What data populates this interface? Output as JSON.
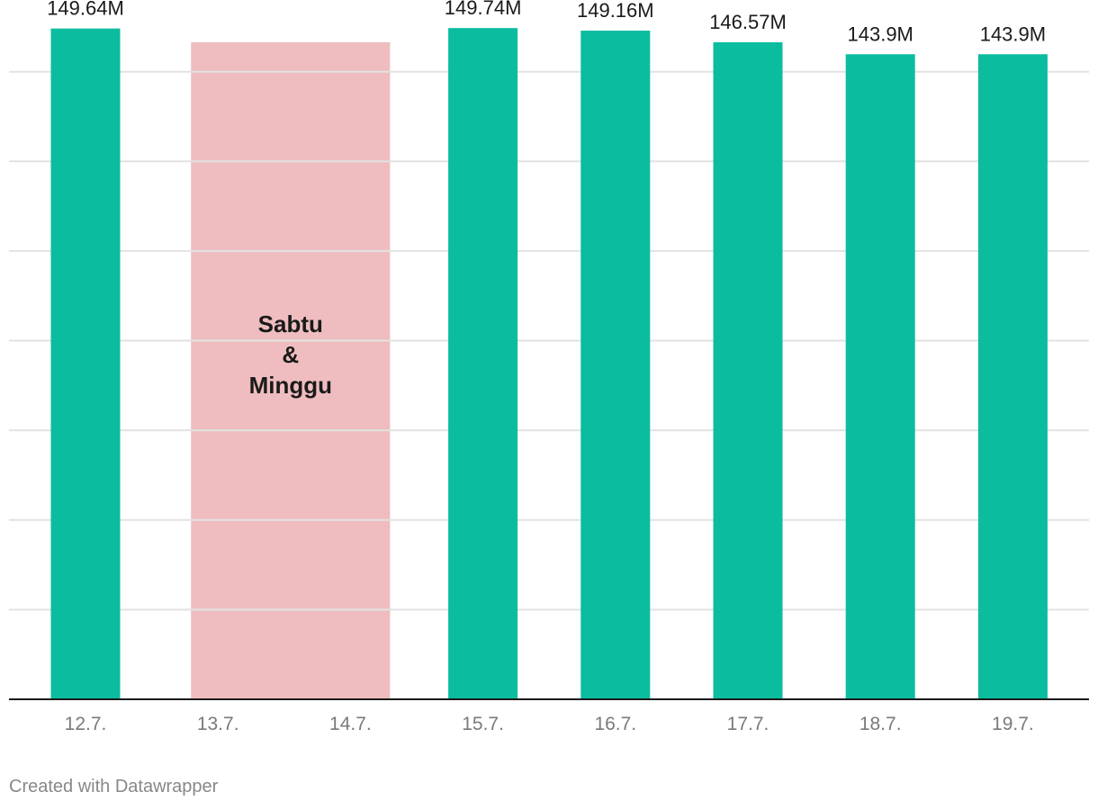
{
  "chart_data": {
    "type": "bar",
    "categories": [
      "12.7.",
      "13.7.",
      "14.7.",
      "15.7.",
      "16.7.",
      "17.7.",
      "18.7.",
      "19.7."
    ],
    "values": [
      149.64,
      null,
      null,
      149.74,
      149.16,
      146.57,
      143.9,
      143.9
    ],
    "value_labels": [
      "149.64M",
      "",
      "",
      "149.74M",
      "149.16M",
      "146.57M",
      "143.9M",
      "143.9M"
    ],
    "ylim": [
      0,
      156
    ],
    "grid": true,
    "title": "",
    "xlabel": "",
    "ylabel": "",
    "annotations": [
      {
        "text_lines": [
          "Sabtu",
          "&",
          "Minggu"
        ],
        "from_category": "13.7.",
        "to_category": "14.7."
      }
    ],
    "colors": {
      "bar": "#0bbc9f",
      "band": "#efbdbf",
      "grid": "#e2e2e2",
      "axis": "#1a1a1a"
    }
  },
  "credit": "Created with Datawrapper"
}
